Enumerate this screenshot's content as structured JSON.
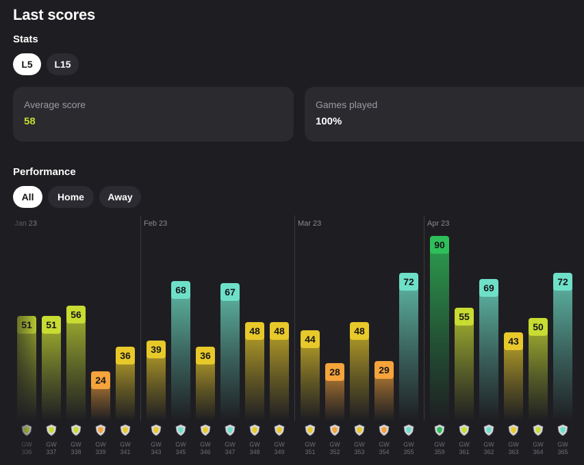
{
  "title": "Last scores",
  "stats": {
    "label": "Stats",
    "tabs": [
      {
        "label": "L5",
        "active": true
      },
      {
        "label": "L15",
        "active": false
      }
    ],
    "cards": [
      {
        "label": "Average score",
        "value": "58",
        "value_color": "#c8dc32"
      },
      {
        "label": "Games played",
        "value": "100%",
        "value_color": "#ffffff"
      }
    ]
  },
  "performance": {
    "label": "Performance",
    "filters": [
      {
        "label": "All",
        "active": true
      },
      {
        "label": "Home",
        "active": false
      },
      {
        "label": "Away",
        "active": false
      }
    ]
  },
  "chart_data": {
    "type": "bar",
    "months": [
      {
        "label": "Jan 23",
        "start_index": 0
      },
      {
        "label": "Feb 23",
        "start_index": 5
      },
      {
        "label": "Mar 23",
        "start_index": 11
      },
      {
        "label": "Apr 23",
        "start_index": 16
      }
    ],
    "games": [
      {
        "gw": "336",
        "score": 51,
        "icon": "club-crest-icon"
      },
      {
        "gw": "337",
        "score": 51,
        "icon": "club-crest-icon"
      },
      {
        "gw": "338",
        "score": 56,
        "icon": "club-crest-icon"
      },
      {
        "gw": "339",
        "score": 24,
        "icon": "club-crest-icon"
      },
      {
        "gw": "341",
        "score": 36,
        "icon": "club-crest-icon"
      },
      {
        "gw": "343",
        "score": 39,
        "icon": "club-crest-icon"
      },
      {
        "gw": "345",
        "score": 68,
        "icon": "club-crest-icon"
      },
      {
        "gw": "346",
        "score": 36,
        "icon": "club-crest-icon"
      },
      {
        "gw": "347",
        "score": 67,
        "icon": "club-crest-icon"
      },
      {
        "gw": "348",
        "score": 48,
        "icon": "club-crest-icon"
      },
      {
        "gw": "349",
        "score": 48,
        "icon": "club-crest-icon"
      },
      {
        "gw": "351",
        "score": 44,
        "icon": "club-crest-icon"
      },
      {
        "gw": "352",
        "score": 28,
        "icon": "club-crest-icon"
      },
      {
        "gw": "353",
        "score": 48,
        "icon": "club-crest-icon"
      },
      {
        "gw": "354",
        "score": 29,
        "icon": "club-crest-icon"
      },
      {
        "gw": "355",
        "score": 72,
        "icon": "club-crest-icon"
      },
      {
        "gw": "359",
        "score": 90,
        "icon": "club-crest-icon"
      },
      {
        "gw": "361",
        "score": 55,
        "icon": "club-crest-icon"
      },
      {
        "gw": "362",
        "score": 69,
        "icon": "club-crest-icon"
      },
      {
        "gw": "363",
        "score": 43,
        "icon": "club-crest-icon"
      },
      {
        "gw": "364",
        "score": 50,
        "icon": "club-crest-icon"
      },
      {
        "gw": "365",
        "score": 72,
        "icon": "club-crest-icon"
      }
    ],
    "gw_prefix": "GW",
    "colors": {
      "low": "#f5a33b",
      "mid": "#e8c92a",
      "good": "#c8dc32",
      "high": "#6fe0c8",
      "top": "#2fbf5a"
    },
    "ylim": [
      0,
      100
    ]
  }
}
